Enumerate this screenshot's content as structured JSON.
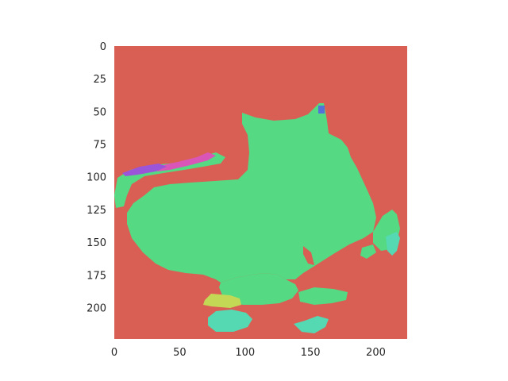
{
  "chart_data": {
    "type": "heatmap",
    "description_kind": "segmentation-mask image",
    "title": "",
    "xlabel": "",
    "ylabel": "",
    "xlim": [
      0,
      224
    ],
    "ylim": [
      224,
      0
    ],
    "grid": false,
    "x_ticks": [
      "0",
      "50",
      "100",
      "150",
      "200"
    ],
    "y_ticks": [
      "0",
      "25",
      "50",
      "75",
      "100",
      "125",
      "150",
      "175",
      "200"
    ],
    "colors": {
      "background": "#d95f55",
      "segment_main": "#55d982",
      "segment_magenta": "#d955b8",
      "segment_purple": "#9b55d9",
      "segment_blue": "#5570d9",
      "segment_yellow": "#c3d955",
      "segment_teal": "#55d9b2",
      "axis_spine": "#ffffff"
    },
    "regions": [
      {
        "label": "main-segment",
        "color": "segment_main"
      },
      {
        "label": "left-arm-segment",
        "color": "segment_main"
      },
      {
        "label": "magenta-strip",
        "color": "segment_magenta"
      },
      {
        "label": "purple-strip",
        "color": "segment_purple"
      },
      {
        "label": "blue-dot",
        "color": "segment_blue"
      },
      {
        "label": "yellow-patch",
        "color": "segment_yellow"
      },
      {
        "label": "teal-patch-bottom",
        "color": "segment_teal"
      },
      {
        "label": "teal-patch-right",
        "color": "segment_teal"
      }
    ]
  }
}
